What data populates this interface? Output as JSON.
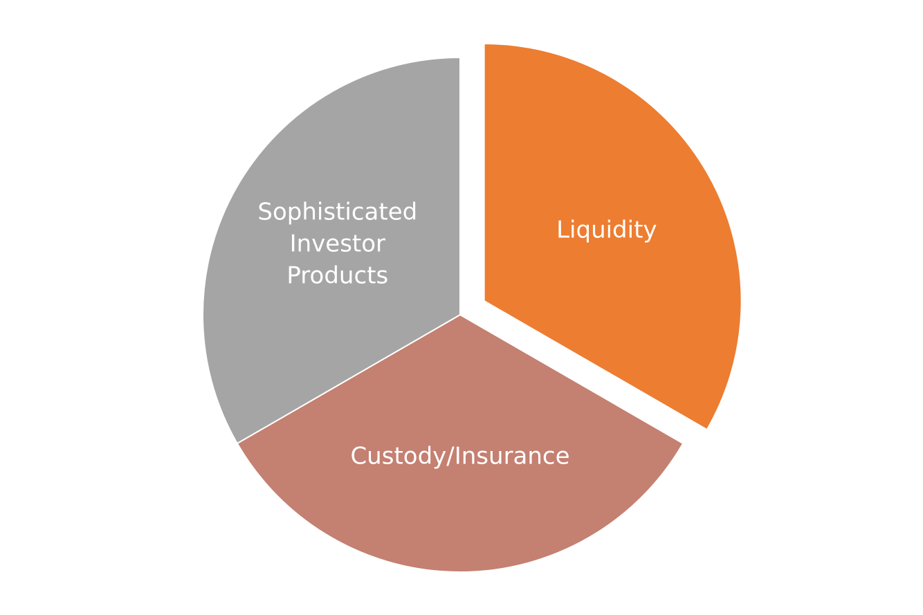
{
  "chart_data": {
    "type": "pie",
    "title": "",
    "slices": [
      {
        "label": "Liquidity",
        "label_lines": [
          "Liquidity"
        ],
        "value": 33.3,
        "color": "#ED7D31",
        "exploded": true
      },
      {
        "label": "Custody/Insurance",
        "label_lines": [
          "Custody/Insurance"
        ],
        "value": 33.3,
        "color": "#C48071",
        "exploded": false
      },
      {
        "label": "Sophisticated Investor Products",
        "label_lines": [
          "Sophisticated",
          "Investor",
          "Products"
        ],
        "value": 33.3,
        "color": "#A5A5A5",
        "exploded": false
      }
    ],
    "start_angle_deg": 0,
    "direction": "clockwise",
    "label_color": "#FFFFFF",
    "separator_color": "#FFFFFF",
    "legend": "none"
  }
}
